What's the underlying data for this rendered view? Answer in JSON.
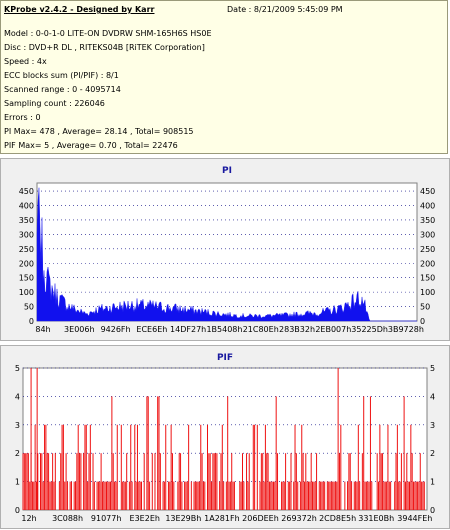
{
  "info": {
    "title": "KProbe v2.4.2 - Designed by Karr",
    "date": "Date : 8/21/2009 5:45:09 PM",
    "lines": [
      "Model : 0-0-1-0 LITE-ON DVDRW SHM-165H6S HS0E",
      "Disc : DVD+R DL , RITEKS04B [RiTEK Corporation]",
      "Speed : 4x",
      "ECC blocks sum (PI/PIF) : 8/1",
      "Scanned range : 0 - 4095714",
      "Sampling count : 226046",
      "Errors : 0",
      "PI Max= 478 , Average= 28.14 , Total= 908515",
      "PIF Max= 5 , Average= 0.70 , Total= 22476"
    ]
  },
  "colors": {
    "pi": "#1111ee",
    "pif": "#ee1111",
    "title": "#1a1aa0",
    "grid": "#000080"
  },
  "chart_data": [
    {
      "type": "area",
      "title": "PI",
      "ylim": [
        0,
        478
      ],
      "yticks": [
        0,
        50,
        100,
        150,
        200,
        250,
        300,
        350,
        400,
        450
      ],
      "xticks": [
        "84h",
        "3E006h",
        "9426Fh",
        "ECE6Eh",
        "14DF27h",
        "1B5408h",
        "21C80Eh",
        "283B32h",
        "2EB007h",
        "35225Dh",
        "3B9728h"
      ],
      "profile_x": [
        0,
        0.005,
        0.012,
        0.02,
        0.03,
        0.045,
        0.06,
        0.08,
        0.1,
        0.13,
        0.16,
        0.2,
        0.25,
        0.3,
        0.35,
        0.4,
        0.45,
        0.5,
        0.55,
        0.6,
        0.65,
        0.7,
        0.74,
        0.77,
        0.8,
        0.82,
        0.835,
        0.85,
        0.86,
        0.875,
        0.885,
        0.9,
        1.0
      ],
      "profile_y": [
        280,
        350,
        260,
        180,
        130,
        100,
        75,
        55,
        40,
        25,
        40,
        48,
        55,
        52,
        45,
        38,
        30,
        22,
        18,
        18,
        20,
        25,
        28,
        35,
        45,
        60,
        70,
        80,
        65,
        0,
        0,
        0,
        0
      ]
    },
    {
      "type": "bar",
      "title": "PIF",
      "ylim": [
        0,
        5
      ],
      "yticks": [
        0,
        1,
        2,
        3,
        4,
        5
      ],
      "xticks": [
        "12h",
        "3C088h",
        "91077h",
        "E3E2Eh",
        "13E29Bh",
        "1A281Fh",
        "206DEEh",
        "269372h",
        "2CD8E5h",
        "331E0Bh",
        "3944FEh"
      ],
      "spikes_5_at": [
        0.02,
        0.035,
        0.78
      ]
    }
  ]
}
